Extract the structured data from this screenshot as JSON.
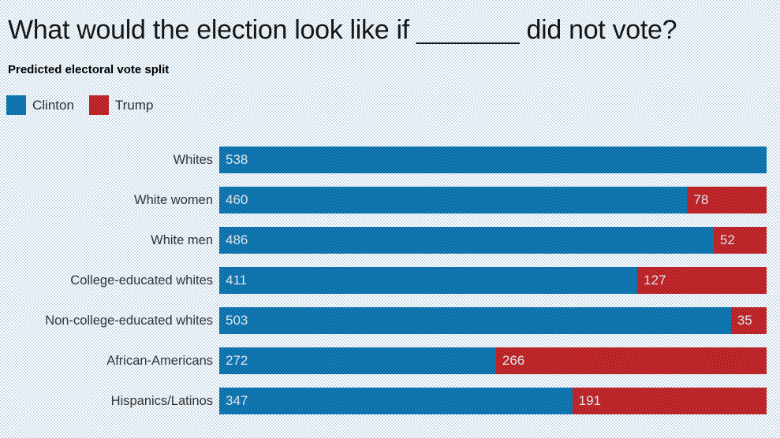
{
  "title": "What would the election look like if _______ did not vote?",
  "subtitle": "Predicted electoral vote split",
  "legend": {
    "items": [
      {
        "label": "Clinton",
        "color": "#1277b5"
      },
      {
        "label": "Trump",
        "color": "#c2272b"
      }
    ]
  },
  "chart_data": {
    "type": "bar",
    "orientation": "horizontal",
    "stacked": true,
    "title": "What would the election look like if _______ did not vote?",
    "subtitle": "Predicted electoral vote split",
    "categories": [
      "Whites",
      "White women",
      "White men",
      "College-educated whites",
      "Non-college-educated whites",
      "African-Americans",
      "Hispanics/Latinos"
    ],
    "series": [
      {
        "name": "Clinton",
        "color": "#1277b5",
        "values": [
          538,
          460,
          486,
          411,
          503,
          272,
          347
        ]
      },
      {
        "name": "Trump",
        "color": "#c2272b",
        "values": [
          0,
          78,
          52,
          127,
          35,
          266,
          191
        ]
      }
    ],
    "xlim": [
      0,
      538
    ],
    "grid": false,
    "legend_position": "top-left",
    "value_labels": "inside-left of each segment; zero-value segments hidden"
  }
}
